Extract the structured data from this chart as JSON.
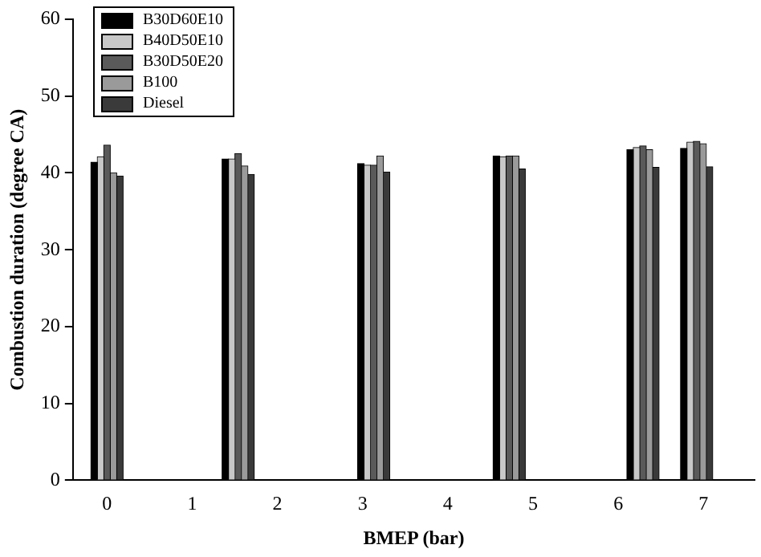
{
  "chart_data": {
    "type": "bar",
    "xlabel": "BMEP (bar)",
    "ylabel": "Combustion duration (degree CA)",
    "x": [
      0,
      1.54,
      3.13,
      4.72,
      6.29,
      6.92
    ],
    "series": [
      {
        "name": "B30D60E10",
        "color": "#000000",
        "values": [
          41.4,
          41.8,
          41.2,
          42.2,
          43.0,
          43.2
        ]
      },
      {
        "name": "B40D50E10",
        "color": "#c8c8c8",
        "values": [
          42.1,
          41.8,
          41.0,
          42.1,
          43.3,
          44.0
        ]
      },
      {
        "name": "B30D50E20",
        "color": "#5a5a5a",
        "values": [
          43.6,
          42.5,
          41.0,
          42.2,
          43.5,
          44.1
        ]
      },
      {
        "name": "B100",
        "color": "#9a9a9a",
        "values": [
          40.0,
          40.9,
          42.2,
          42.2,
          43.0,
          43.8
        ]
      },
      {
        "name": "Diesel",
        "color": "#3a3a3a",
        "values": [
          39.6,
          39.8,
          40.1,
          40.5,
          40.7,
          40.8
        ]
      }
    ],
    "xlim": [
      -0.4,
      7.6
    ],
    "xticks": [
      0,
      1,
      2,
      3,
      4,
      5,
      6,
      7
    ],
    "ylim": [
      0,
      60
    ],
    "yticks": [
      0,
      10,
      20,
      30,
      40,
      50,
      60
    ],
    "grid": false,
    "legend": "top left"
  }
}
